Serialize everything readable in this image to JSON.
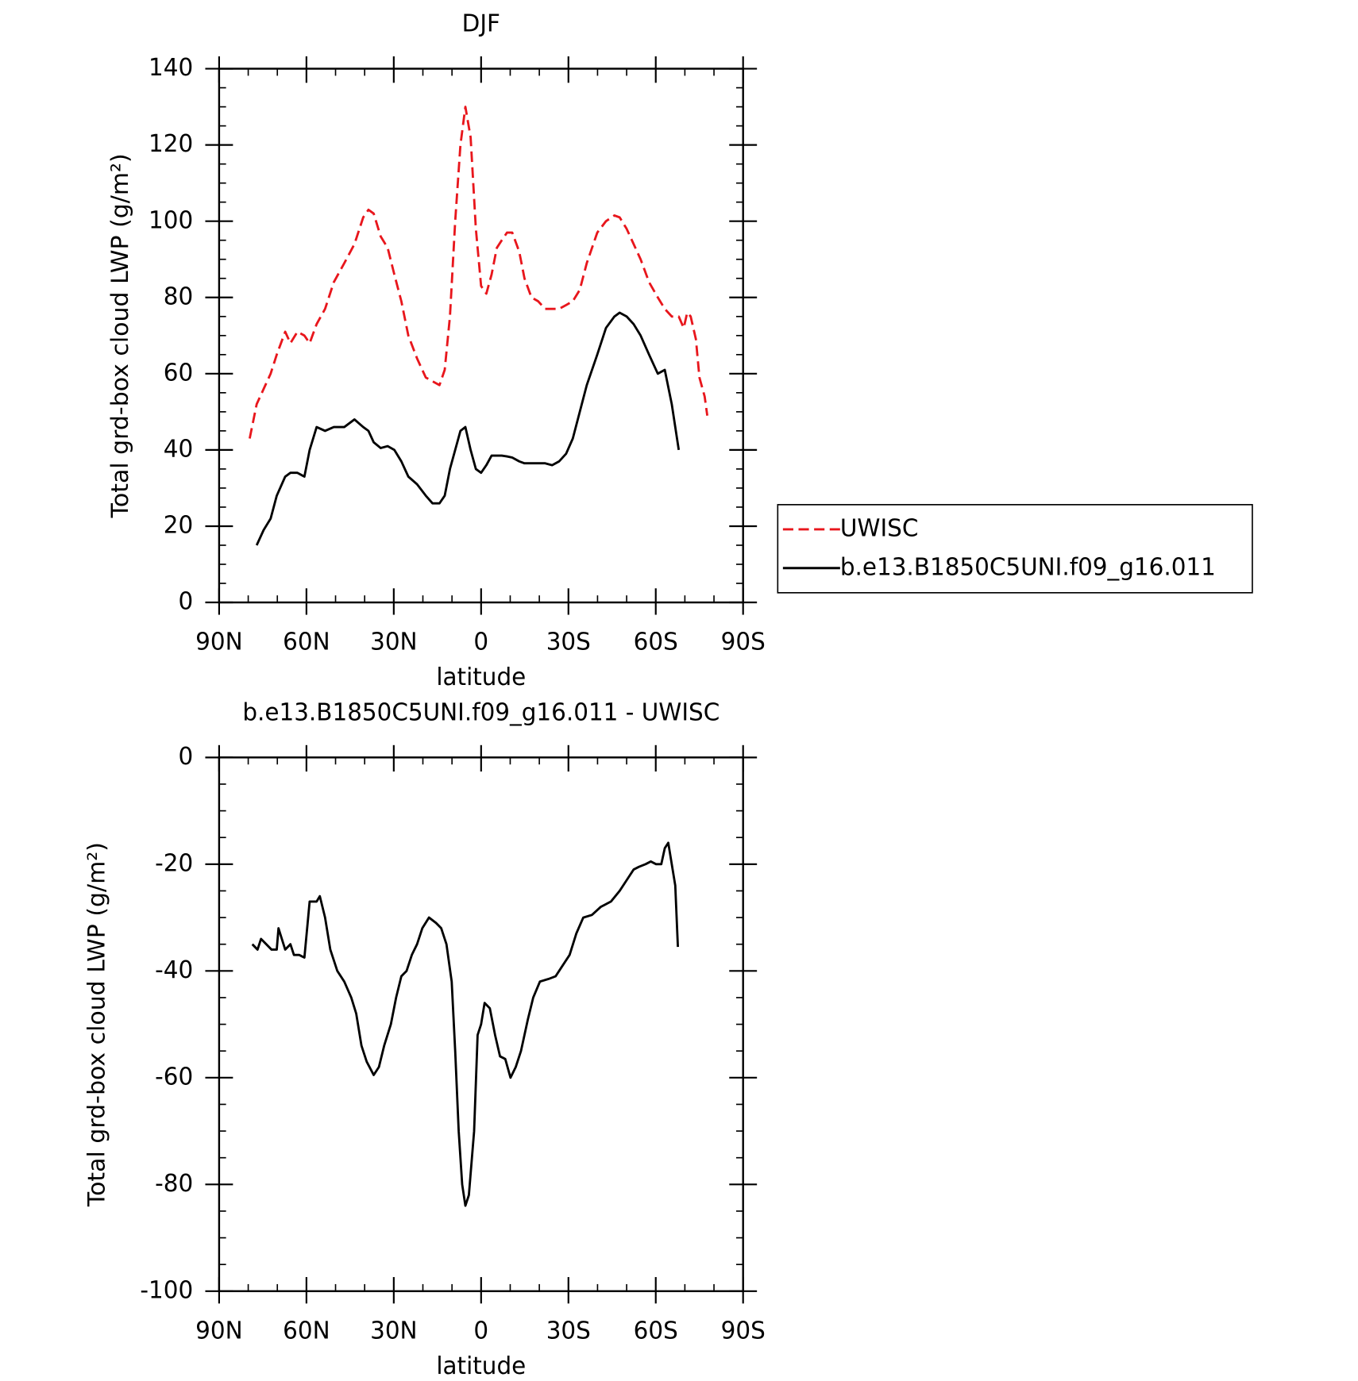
{
  "chart_data": [
    {
      "type": "line",
      "title": "DJF",
      "x_label": "latitude",
      "y_label": "Total grd-box cloud LWP (g/m²)",
      "x": [
        79.5,
        77.1,
        74.7,
        72.3,
        70.2,
        67.3,
        65.5,
        63.1,
        60.7,
        58.9,
        56.5,
        53.6,
        50.6,
        47.0,
        43.5,
        40.5,
        38.7,
        36.9,
        34.5,
        32.1,
        29.8,
        27.4,
        25.0,
        22.0,
        19.0,
        16.7,
        14.3,
        12.5,
        10.7,
        8.9,
        7.1,
        5.4,
        3.6,
        1.8,
        0,
        -1.8,
        -3.6,
        -5.4,
        -7.1,
        -8.9,
        -10.7,
        -13.1,
        -14.9,
        -17.3,
        -19.6,
        -22.0,
        -24.4,
        -26.8,
        -29.2,
        -31.5,
        -33.9,
        -36.3,
        -39.9,
        -42.9,
        -45.8,
        -47.6,
        -50.0,
        -52.4,
        -54.8,
        -57.7,
        -60.7,
        -63.1,
        -65.5,
        -67.9,
        -69.6,
        -70.8,
        -72.0,
        -73.8,
        -75.0,
        -76.8,
        -77.7
      ],
      "series": [
        {
          "name": "UWISC",
          "color": "#e8161c",
          "dashed": true,
          "values": [
            43,
            52,
            56,
            60,
            65,
            71,
            68,
            71,
            70,
            68,
            73,
            77,
            84,
            89,
            94,
            101,
            103,
            102,
            96,
            93,
            86,
            79,
            70,
            64,
            59,
            58,
            57,
            61,
            75,
            100,
            120,
            130,
            122,
            98,
            83,
            81,
            86,
            93,
            95,
            97,
            97,
            92,
            85,
            80,
            79,
            77,
            77,
            77,
            78,
            79,
            82,
            89,
            97,
            100,
            101.5,
            101,
            98,
            94,
            90,
            84,
            80,
            77,
            75,
            75,
            72,
            76,
            75,
            69,
            59,
            54,
            49
          ]
        },
        {
          "name": "b.e13.B1850C5UNI.f09_g16.011",
          "color": "#000000",
          "dashed": false,
          "values": [
            null,
            15,
            19,
            22,
            28,
            33,
            34,
            34,
            33,
            40,
            46,
            45,
            46,
            46,
            48,
            46,
            45,
            42,
            40.5,
            41,
            40,
            37,
            33,
            31,
            28,
            26,
            26,
            28,
            35,
            40,
            45,
            46,
            40,
            35,
            34,
            36,
            38.5,
            38.5,
            38.5,
            38.3,
            38,
            37,
            36.5,
            36.5,
            36.5,
            36.5,
            36,
            37,
            39,
            43,
            50,
            57,
            65,
            72,
            75,
            76,
            75,
            73,
            70,
            65,
            60,
            61,
            52,
            40,
            null,
            null,
            null,
            null,
            null,
            null,
            null
          ]
        }
      ],
      "xlim": [
        90,
        -90
      ],
      "xticks": [
        {
          "value": 90,
          "label": "90N"
        },
        {
          "value": 60,
          "label": "60N"
        },
        {
          "value": 30,
          "label": "30N"
        },
        0,
        {
          "value": -30,
          "label": "30S"
        },
        {
          "value": -60,
          "label": "60S"
        },
        {
          "value": -90,
          "label": "90S"
        }
      ],
      "ylim": [
        0,
        140
      ],
      "yticks": [
        0,
        20,
        40,
        60,
        80,
        100,
        120,
        140
      ],
      "legend": "right"
    },
    {
      "type": "line",
      "title": "b.e13.B1850C5UNI.f09_g16.011 - UWISC",
      "x_label": "latitude",
      "y_label": "Total grd-box cloud LWP (g/m²)",
      "x": [
        78.6,
        76.8,
        75.6,
        73.8,
        72.0,
        70.2,
        69.6,
        67.3,
        65.5,
        64.3,
        62.5,
        60.7,
        58.9,
        56.5,
        55.4,
        53.6,
        51.8,
        49.4,
        47.0,
        44.6,
        42.9,
        41.1,
        39.3,
        36.9,
        35.1,
        33.3,
        31.0,
        29.2,
        27.4,
        25.6,
        23.8,
        22.0,
        20.2,
        17.9,
        15.5,
        13.7,
        11.9,
        10.1,
        8.9,
        7.7,
        6.5,
        5.4,
        4.2,
        2.4,
        1.2,
        0,
        -1.2,
        -3.0,
        -4.8,
        -6.5,
        -8.3,
        -10.1,
        -11.9,
        -13.7,
        -16.1,
        -17.9,
        -20.2,
        -23.2,
        -25.6,
        -28.0,
        -30.4,
        -32.7,
        -35.1,
        -38.1,
        -41.1,
        -44.6,
        -47.6,
        -50.0,
        -52.4,
        -54.2,
        -56.5,
        -58.3,
        -60.1,
        -61.9,
        -63.1,
        -64.3,
        -65.5,
        -66.7,
        -67.6
      ],
      "series": [
        {
          "color": "#000000",
          "dashed": false,
          "values": [
            -35,
            -36,
            -34,
            -35,
            -36,
            -36,
            -32,
            -36,
            -35,
            -37,
            -37,
            -37.5,
            -27,
            -27,
            -26,
            -30,
            -36,
            -40,
            -42,
            -45,
            -48,
            -54,
            -57,
            -59.5,
            -58,
            -54,
            -50,
            -45,
            -41,
            -40,
            -37,
            -35,
            -32,
            -30,
            -31,
            -32,
            -35,
            -42,
            -55,
            -70,
            -80,
            -84,
            -82,
            -70,
            -52,
            -50,
            -46,
            -47,
            -52,
            -56,
            -56.5,
            -60,
            -58,
            -55,
            -49,
            -45,
            -42,
            -41.5,
            -41,
            -39,
            -37,
            -33,
            -30,
            -29.5,
            -28,
            -27,
            -25,
            -23,
            -21,
            -20.5,
            -20,
            -19.5,
            -20,
            -20,
            -17,
            -16,
            -20,
            -24,
            -35.5
          ]
        }
      ],
      "xlim": [
        90,
        -90
      ],
      "xticks": [
        {
          "value": 90,
          "label": "90N"
        },
        {
          "value": 60,
          "label": "60N"
        },
        {
          "value": 30,
          "label": "30N"
        },
        0,
        {
          "value": -30,
          "label": "30S"
        },
        {
          "value": -60,
          "label": "60S"
        },
        {
          "value": -90,
          "label": "90S"
        }
      ],
      "ylim": [
        -100,
        0
      ],
      "yticks": [
        -100,
        -80,
        -60,
        -40,
        -20,
        0
      ]
    }
  ]
}
